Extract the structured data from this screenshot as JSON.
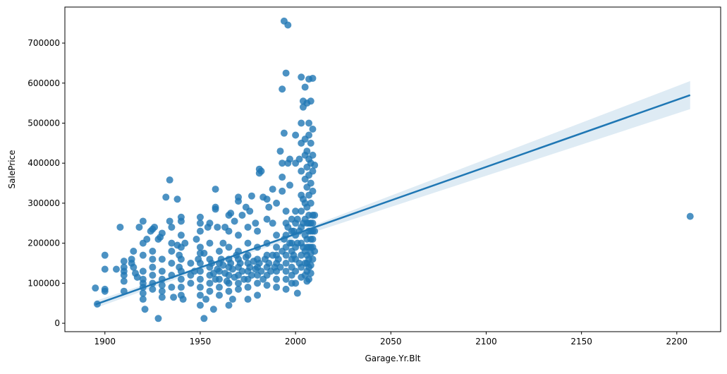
{
  "chart_data": {
    "type": "scatter",
    "title": "",
    "xlabel": "Garage.Yr.Blt",
    "ylabel": "SalePrice",
    "xlim": [
      1879,
      2223
    ],
    "ylim": [
      -21000,
      790000
    ],
    "xticks": [
      1900,
      1950,
      2000,
      2050,
      2100,
      2150,
      2200
    ],
    "yticks": [
      0,
      100000,
      200000,
      300000,
      400000,
      500000,
      600000,
      700000
    ],
    "grid": false,
    "color": "#1f77b4",
    "regression": {
      "x": [
        1895,
        2207
      ],
      "y": [
        47000,
        570000
      ],
      "ci": [
        [
          1895,
          38000,
          56000
        ],
        [
          1975,
          174000,
          182000
        ],
        [
          2207,
          535000,
          605000
        ]
      ]
    },
    "points": [
      [
        1895,
        88000
      ],
      [
        1896,
        48000
      ],
      [
        1900,
        170000
      ],
      [
        1900,
        135000
      ],
      [
        1900,
        85000
      ],
      [
        1900,
        80000
      ],
      [
        1906,
        135000
      ],
      [
        1908,
        240000
      ],
      [
        1910,
        155000
      ],
      [
        1910,
        140000
      ],
      [
        1910,
        130000
      ],
      [
        1910,
        120000
      ],
      [
        1910,
        105000
      ],
      [
        1910,
        80000
      ],
      [
        1915,
        180000
      ],
      [
        1914,
        160000
      ],
      [
        1914,
        150000
      ],
      [
        1915,
        140000
      ],
      [
        1916,
        125000
      ],
      [
        1917,
        115000
      ],
      [
        1918,
        240000
      ],
      [
        1920,
        255000
      ],
      [
        1920,
        200000
      ],
      [
        1920,
        170000
      ],
      [
        1920,
        130000
      ],
      [
        1920,
        110000
      ],
      [
        1920,
        100000
      ],
      [
        1920,
        90000
      ],
      [
        1920,
        75000
      ],
      [
        1920,
        60000
      ],
      [
        1921,
        35000
      ],
      [
        1922,
        210000
      ],
      [
        1924,
        230000
      ],
      [
        1925,
        235000
      ],
      [
        1926,
        240000
      ],
      [
        1925,
        180000
      ],
      [
        1925,
        160000
      ],
      [
        1925,
        140000
      ],
      [
        1925,
        120000
      ],
      [
        1925,
        100000
      ],
      [
        1925,
        85000
      ],
      [
        1928,
        210000
      ],
      [
        1928,
        12000
      ],
      [
        1929,
        215000
      ],
      [
        1930,
        225000
      ],
      [
        1930,
        160000
      ],
      [
        1930,
        130000
      ],
      [
        1930,
        110000
      ],
      [
        1930,
        95000
      ],
      [
        1930,
        80000
      ],
      [
        1930,
        65000
      ],
      [
        1932,
        315000
      ],
      [
        1934,
        358000
      ],
      [
        1934,
        255000
      ],
      [
        1935,
        240000
      ],
      [
        1935,
        200000
      ],
      [
        1935,
        180000
      ],
      [
        1935,
        150000
      ],
      [
        1935,
        120000
      ],
      [
        1935,
        90000
      ],
      [
        1936,
        65000
      ],
      [
        1938,
        310000
      ],
      [
        1938,
        195000
      ],
      [
        1939,
        170000
      ],
      [
        1939,
        140000
      ],
      [
        1940,
        265000
      ],
      [
        1940,
        255000
      ],
      [
        1940,
        220000
      ],
      [
        1940,
        190000
      ],
      [
        1940,
        160000
      ],
      [
        1940,
        130000
      ],
      [
        1940,
        110000
      ],
      [
        1940,
        90000
      ],
      [
        1940,
        70000
      ],
      [
        1941,
        60000
      ],
      [
        1942,
        200000
      ],
      [
        1945,
        150000
      ],
      [
        1945,
        120000
      ],
      [
        1945,
        100000
      ],
      [
        1947,
        130000
      ],
      [
        1948,
        210000
      ],
      [
        1949,
        160000
      ],
      [
        1950,
        265000
      ],
      [
        1950,
        250000
      ],
      [
        1950,
        230000
      ],
      [
        1950,
        190000
      ],
      [
        1950,
        175000
      ],
      [
        1950,
        150000
      ],
      [
        1950,
        130000
      ],
      [
        1950,
        110000
      ],
      [
        1950,
        90000
      ],
      [
        1950,
        70000
      ],
      [
        1950,
        45000
      ],
      [
        1952,
        12000
      ],
      [
        1952,
        175000
      ],
      [
        1953,
        60000
      ],
      [
        1954,
        240000
      ],
      [
        1955,
        250000
      ],
      [
        1955,
        200000
      ],
      [
        1955,
        160000
      ],
      [
        1955,
        140000
      ],
      [
        1955,
        120000
      ],
      [
        1955,
        100000
      ],
      [
        1955,
        80000
      ],
      [
        1957,
        35000
      ],
      [
        1958,
        335000
      ],
      [
        1958,
        290000
      ],
      [
        1958,
        285000
      ],
      [
        1959,
        240000
      ],
      [
        1960,
        180000
      ],
      [
        1960,
        150000
      ],
      [
        1960,
        130000
      ],
      [
        1960,
        110000
      ],
      [
        1960,
        90000
      ],
      [
        1960,
        70000
      ],
      [
        1962,
        200000
      ],
      [
        1963,
        240000
      ],
      [
        1965,
        270000
      ],
      [
        1965,
        230000
      ],
      [
        1965,
        190000
      ],
      [
        1965,
        160000
      ],
      [
        1965,
        140000
      ],
      [
        1965,
        120000
      ],
      [
        1965,
        100000
      ],
      [
        1965,
        80000
      ],
      [
        1965,
        45000
      ],
      [
        1966,
        275000
      ],
      [
        1967,
        60000
      ],
      [
        1968,
        255000
      ],
      [
        1970,
        315000
      ],
      [
        1970,
        305000
      ],
      [
        1970,
        220000
      ],
      [
        1970,
        180000
      ],
      [
        1970,
        160000
      ],
      [
        1970,
        140000
      ],
      [
        1970,
        120000
      ],
      [
        1970,
        100000
      ],
      [
        1970,
        85000
      ],
      [
        1972,
        270000
      ],
      [
        1974,
        290000
      ],
      [
        1975,
        240000
      ],
      [
        1975,
        200000
      ],
      [
        1975,
        170000
      ],
      [
        1975,
        150000
      ],
      [
        1975,
        130000
      ],
      [
        1975,
        110000
      ],
      [
        1975,
        90000
      ],
      [
        1975,
        60000
      ],
      [
        1976,
        280000
      ],
      [
        1977,
        318000
      ],
      [
        1979,
        250000
      ],
      [
        1980,
        230000
      ],
      [
        1980,
        190000
      ],
      [
        1980,
        160000
      ],
      [
        1980,
        140000
      ],
      [
        1980,
        120000
      ],
      [
        1980,
        100000
      ],
      [
        1980,
        70000
      ],
      [
        1981,
        385000
      ],
      [
        1981,
        375000
      ],
      [
        1982,
        380000
      ],
      [
        1983,
        315000
      ],
      [
        1985,
        310000
      ],
      [
        1985,
        260000
      ],
      [
        1985,
        200000
      ],
      [
        1985,
        170000
      ],
      [
        1985,
        140000
      ],
      [
        1985,
        120000
      ],
      [
        1985,
        95000
      ],
      [
        1986,
        290000
      ],
      [
        1988,
        335000
      ],
      [
        1988,
        250000
      ],
      [
        1990,
        300000
      ],
      [
        1990,
        220000
      ],
      [
        1990,
        190000
      ],
      [
        1990,
        170000
      ],
      [
        1990,
        150000
      ],
      [
        1990,
        130000
      ],
      [
        1990,
        110000
      ],
      [
        1990,
        90000
      ],
      [
        1992,
        430000
      ],
      [
        1993,
        585000
      ],
      [
        1993,
        400000
      ],
      [
        1993,
        365000
      ],
      [
        1993,
        330000
      ],
      [
        1994,
        755000
      ],
      [
        1994,
        475000
      ],
      [
        1995,
        625000
      ],
      [
        1996,
        745000
      ],
      [
        1996,
        400000
      ],
      [
        1995,
        280000
      ],
      [
        1995,
        250000
      ],
      [
        1995,
        220000
      ],
      [
        1995,
        190000
      ],
      [
        1995,
        170000
      ],
      [
        1995,
        150000
      ],
      [
        1995,
        130000
      ],
      [
        1995,
        110000
      ],
      [
        1995,
        85000
      ],
      [
        1997,
        410000
      ],
      [
        1997,
        345000
      ],
      [
        1998,
        260000
      ],
      [
        1998,
        230000
      ],
      [
        1998,
        200000
      ],
      [
        1998,
        180000
      ],
      [
        1998,
        160000
      ],
      [
        1998,
        140000
      ],
      [
        1998,
        120000
      ],
      [
        1998,
        100000
      ],
      [
        2000,
        470000
      ],
      [
        2000,
        400000
      ],
      [
        2000,
        280000
      ],
      [
        2000,
        250000
      ],
      [
        2000,
        220000
      ],
      [
        2000,
        190000
      ],
      [
        2000,
        160000
      ],
      [
        2000,
        130000
      ],
      [
        2000,
        100000
      ],
      [
        2001,
        75000
      ],
      [
        2002,
        410000
      ],
      [
        2003,
        615000
      ],
      [
        2003,
        500000
      ],
      [
        2003,
        450000
      ],
      [
        2003,
        380000
      ],
      [
        2003,
        320000
      ],
      [
        2003,
        280000
      ],
      [
        2003,
        240000
      ],
      [
        2003,
        200000
      ],
      [
        2003,
        170000
      ],
      [
        2003,
        140000
      ],
      [
        2003,
        115000
      ],
      [
        2004,
        555000
      ],
      [
        2004,
        540000
      ],
      [
        2005,
        590000
      ],
      [
        2005,
        460000
      ],
      [
        2005,
        420000
      ],
      [
        2005,
        360000
      ],
      [
        2005,
        300000
      ],
      [
        2005,
        260000
      ],
      [
        2005,
        220000
      ],
      [
        2005,
        180000
      ],
      [
        2005,
        150000
      ],
      [
        2005,
        120000
      ],
      [
        2006,
        550000
      ],
      [
        2006,
        430000
      ],
      [
        2006,
        390000
      ],
      [
        2006,
        340000
      ],
      [
        2006,
        290000
      ],
      [
        2006,
        250000
      ],
      [
        2006,
        210000
      ],
      [
        2006,
        170000
      ],
      [
        2006,
        130000
      ],
      [
        2006,
        105000
      ],
      [
        2007,
        610000
      ],
      [
        2007,
        500000
      ],
      [
        2007,
        470000
      ],
      [
        2007,
        410000
      ],
      [
        2007,
        370000
      ],
      [
        2007,
        320000
      ],
      [
        2007,
        270000
      ],
      [
        2007,
        230000
      ],
      [
        2007,
        190000
      ],
      [
        2007,
        160000
      ],
      [
        2007,
        140000
      ],
      [
        2007,
        110000
      ],
      [
        2008,
        555000
      ],
      [
        2008,
        450000
      ],
      [
        2008,
        400000
      ],
      [
        2008,
        350000
      ],
      [
        2008,
        300000
      ],
      [
        2008,
        250000
      ],
      [
        2008,
        210000
      ],
      [
        2008,
        175000
      ],
      [
        2008,
        145000
      ],
      [
        2008,
        125000
      ],
      [
        2009,
        612000
      ],
      [
        2009,
        485000
      ],
      [
        2009,
        420000
      ],
      [
        2009,
        380000
      ],
      [
        2009,
        330000
      ],
      [
        2009,
        270000
      ],
      [
        2009,
        230000
      ],
      [
        2009,
        190000
      ],
      [
        2009,
        160000
      ],
      [
        2010,
        395000
      ],
      [
        2010,
        270000
      ],
      [
        2010,
        180000
      ],
      [
        1956,
        150000
      ],
      [
        1957,
        125000
      ],
      [
        1958,
        110000
      ],
      [
        1959,
        135000
      ],
      [
        1961,
        160000
      ],
      [
        1962,
        145000
      ],
      [
        1963,
        125000
      ],
      [
        1964,
        105000
      ],
      [
        1966,
        150000
      ],
      [
        1967,
        135000
      ],
      [
        1968,
        115000
      ],
      [
        1969,
        170000
      ],
      [
        1971,
        150000
      ],
      [
        1972,
        130000
      ],
      [
        1973,
        110000
      ],
      [
        1974,
        165000
      ],
      [
        1976,
        140000
      ],
      [
        1977,
        120000
      ],
      [
        1978,
        155000
      ],
      [
        1979,
        135000
      ],
      [
        1981,
        150000
      ],
      [
        1982,
        130000
      ],
      [
        1983,
        110000
      ],
      [
        1984,
        160000
      ],
      [
        1986,
        150000
      ],
      [
        1987,
        130000
      ],
      [
        1988,
        170000
      ],
      [
        1989,
        140000
      ],
      [
        1991,
        160000
      ],
      [
        1992,
        140000
      ],
      [
        1993,
        180000
      ],
      [
        1994,
        210000
      ],
      [
        1996,
        240000
      ],
      [
        1997,
        200000
      ],
      [
        1999,
        230000
      ],
      [
        1999,
        170000
      ],
      [
        2001,
        200000
      ],
      [
        2001,
        260000
      ],
      [
        2002,
        150000
      ],
      [
        2002,
        230000
      ],
      [
        2004,
        250000
      ],
      [
        2004,
        190000
      ],
      [
        2004,
        310000
      ],
      [
        2006,
        190000
      ],
      [
        2006,
        150000
      ],
      [
        2007,
        250000
      ],
      [
        2008,
        190000
      ],
      [
        2008,
        230000
      ],
      [
        2009,
        210000
      ],
      [
        2009,
        250000
      ],
      [
        2010,
        230000
      ],
      [
        2207,
        267000
      ]
    ]
  }
}
